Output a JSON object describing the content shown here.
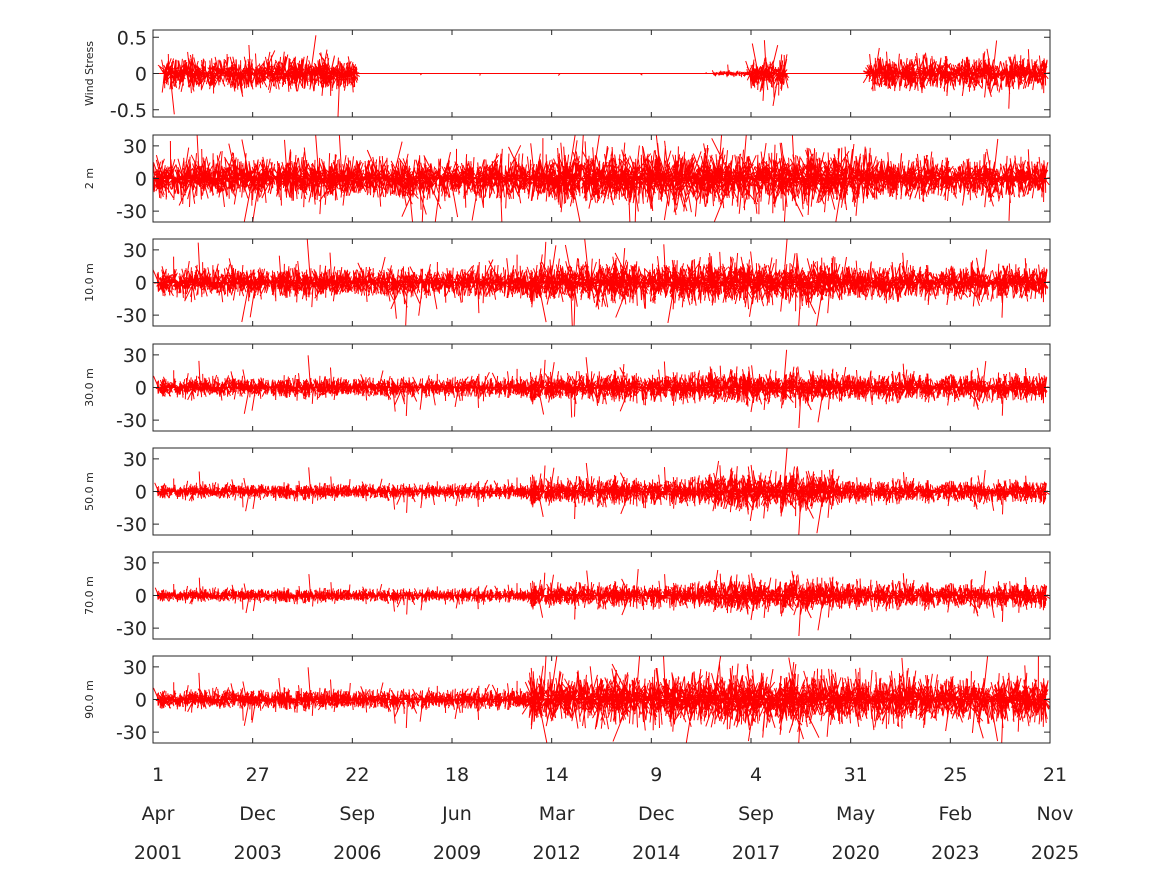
{
  "chart_data": {
    "type": "stick_vector",
    "series_color": "#ff0000",
    "x_date_labels": [
      {
        "day": "1",
        "month": "Apr",
        "year": "2001"
      },
      {
        "day": "27",
        "month": "Dec",
        "year": "2003"
      },
      {
        "day": "22",
        "month": "Sep",
        "year": "2006"
      },
      {
        "day": "18",
        "month": "Jun",
        "year": "2009"
      },
      {
        "day": "14",
        "month": "Mar",
        "year": "2012"
      },
      {
        "day": "9",
        "month": "Dec",
        "year": "2014"
      },
      {
        "day": "4",
        "month": "Sep",
        "year": "2017"
      },
      {
        "day": "31",
        "month": "May",
        "year": "2020"
      },
      {
        "day": "25",
        "month": "Feb",
        "year": "2023"
      },
      {
        "day": "21",
        "month": "Nov",
        "year": "2025"
      }
    ],
    "xlim": [
      "2001-04-01",
      "2025-11-21"
    ],
    "panels": [
      {
        "ylabel": "Wind Stress",
        "ylim": [
          -0.6,
          0.6
        ],
        "yticks": [
          0.5,
          0,
          -0.5
        ],
        "ytick_labels": [
          "0.5",
          "0",
          "-0.5"
        ],
        "activity": [
          {
            "from": 0.012,
            "to": 0.228,
            "amp": 0.3
          },
          {
            "from": 0.228,
            "to": 0.625,
            "amp": 0.0
          },
          {
            "from": 0.625,
            "to": 0.665,
            "amp": 0.05
          },
          {
            "from": 0.665,
            "to": 0.705,
            "amp": 0.3
          },
          {
            "from": 0.705,
            "to": 0.798,
            "amp": 0.0
          },
          {
            "from": 0.798,
            "to": 0.995,
            "amp": 0.3
          }
        ]
      },
      {
        "ylabel": "2 m",
        "ylim": [
          -40,
          40
        ],
        "yticks": [
          30,
          0,
          -30
        ],
        "ytick_labels": [
          "30",
          "0",
          "-30"
        ],
        "activity": [
          {
            "from": 0.0,
            "to": 0.45,
            "amp": 26
          },
          {
            "from": 0.45,
            "to": 0.8,
            "amp": 34
          },
          {
            "from": 0.8,
            "to": 0.995,
            "amp": 24
          }
        ]
      },
      {
        "ylabel": "10.0 m",
        "ylim": [
          -40,
          40
        ],
        "yticks": [
          30,
          0,
          -30
        ],
        "ytick_labels": [
          "30",
          "0",
          "-30"
        ],
        "activity": [
          {
            "from": 0.005,
            "to": 0.42,
            "amp": 18
          },
          {
            "from": 0.42,
            "to": 0.62,
            "amp": 25
          },
          {
            "from": 0.62,
            "to": 0.76,
            "amp": 28
          },
          {
            "from": 0.76,
            "to": 0.995,
            "amp": 20
          }
        ]
      },
      {
        "ylabel": "30.0 m",
        "ylim": [
          -40,
          40
        ],
        "yticks": [
          30,
          0,
          -30
        ],
        "ytick_labels": [
          "30",
          "0",
          "-30"
        ],
        "activity": [
          {
            "from": 0.005,
            "to": 0.42,
            "amp": 12
          },
          {
            "from": 0.42,
            "to": 0.62,
            "amp": 17
          },
          {
            "from": 0.62,
            "to": 0.76,
            "amp": 20
          },
          {
            "from": 0.76,
            "to": 0.995,
            "amp": 16
          }
        ]
      },
      {
        "ylabel": "50.0 m",
        "ylim": [
          -40,
          40
        ],
        "yticks": [
          30,
          0,
          -30
        ],
        "ytick_labels": [
          "30",
          "0",
          "-30"
        ],
        "activity": [
          {
            "from": 0.005,
            "to": 0.42,
            "amp": 9
          },
          {
            "from": 0.42,
            "to": 0.62,
            "amp": 16
          },
          {
            "from": 0.62,
            "to": 0.76,
            "amp": 24
          },
          {
            "from": 0.76,
            "to": 0.995,
            "amp": 13
          }
        ]
      },
      {
        "ylabel": "70.0 m",
        "ylim": [
          -40,
          40
        ],
        "yticks": [
          30,
          0,
          -30
        ],
        "ytick_labels": [
          "30",
          "0",
          "-30"
        ],
        "activity": [
          {
            "from": 0.005,
            "to": 0.42,
            "amp": 8
          },
          {
            "from": 0.42,
            "to": 0.62,
            "amp": 14
          },
          {
            "from": 0.62,
            "to": 0.76,
            "amp": 20
          },
          {
            "from": 0.76,
            "to": 0.995,
            "amp": 15
          }
        ]
      },
      {
        "ylabel": "90.0 m",
        "ylim": [
          -40,
          40
        ],
        "yticks": [
          30,
          0,
          -30
        ],
        "ytick_labels": [
          "30",
          "0",
          "-30"
        ],
        "activity": [
          {
            "from": 0.005,
            "to": 0.42,
            "amp": 12
          },
          {
            "from": 0.42,
            "to": 0.62,
            "amp": 30
          },
          {
            "from": 0.62,
            "to": 0.76,
            "amp": 34
          },
          {
            "from": 0.76,
            "to": 0.995,
            "amp": 28
          }
        ]
      }
    ]
  }
}
